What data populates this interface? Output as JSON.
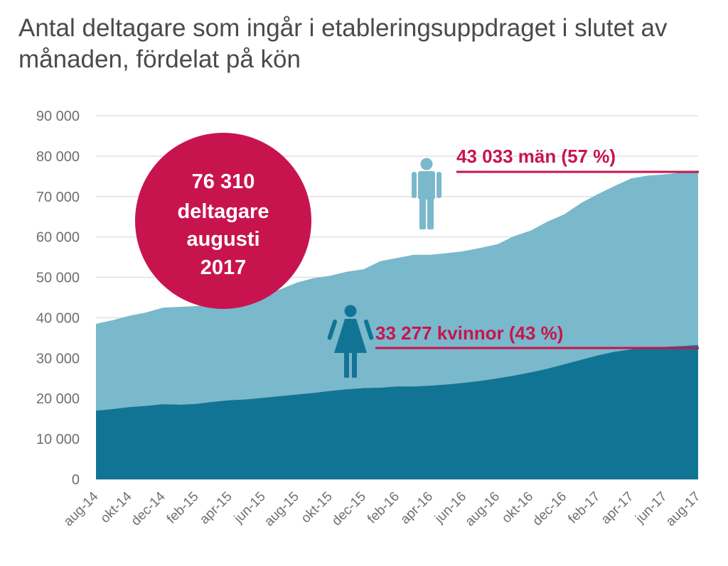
{
  "title": "Antal deltagare som ingår i etableringsuppdraget i slutet av månaden, fördelat på kön",
  "colors": {
    "men_area": "#7ab8cc",
    "women_area": "#127495",
    "accent": "#c8144e",
    "grid": "#e0e0e0"
  },
  "annotations": {
    "men_label": "43 033 män (57 %)",
    "women_label": "33 277 kvinnor (43 %)",
    "circle_line1": "76 310",
    "circle_line2": "deltagare",
    "circle_line3": "augusti",
    "circle_line4": "2017"
  },
  "icons": {
    "men": "man-icon",
    "women": "woman-icon"
  },
  "chart_data": {
    "type": "area",
    "stacked": true,
    "title": "Antal deltagare som ingår i etableringsuppdraget i slutet av månaden, fördelat på kön",
    "xlabel": "",
    "ylabel": "",
    "ylim": [
      0,
      90000
    ],
    "yticks": [
      0,
      10000,
      20000,
      30000,
      40000,
      50000,
      60000,
      70000,
      80000,
      90000
    ],
    "ytick_labels": [
      "0",
      "10 000",
      "20 000",
      "30 000",
      "40 000",
      "50 000",
      "60 000",
      "70 000",
      "80 000",
      "90 000"
    ],
    "grid": true,
    "x": [
      "aug-14",
      "sep-14",
      "okt-14",
      "nov-14",
      "dec-14",
      "jan-15",
      "feb-15",
      "mar-15",
      "apr-15",
      "maj-15",
      "jun-15",
      "jul-15",
      "aug-15",
      "sep-15",
      "okt-15",
      "nov-15",
      "dec-15",
      "jan-16",
      "feb-16",
      "mar-16",
      "apr-16",
      "maj-16",
      "jun-16",
      "jul-16",
      "aug-16",
      "sep-16",
      "okt-16",
      "nov-16",
      "dec-16",
      "jan-17",
      "feb-17",
      "mar-17",
      "apr-17",
      "maj-17",
      "jun-17",
      "jul-17",
      "aug-17"
    ],
    "x_tick_labels": [
      "aug-14",
      "okt-14",
      "dec-14",
      "feb-15",
      "apr-15",
      "jun-15",
      "aug-15",
      "okt-15",
      "dec-15",
      "feb-16",
      "apr-16",
      "jun-16",
      "aug-16",
      "okt-16",
      "dec-16",
      "feb-17",
      "apr-17",
      "jun-17",
      "aug-17"
    ],
    "series": [
      {
        "name": "kvinnor",
        "values": [
          17000,
          17400,
          17900,
          18200,
          18600,
          18500,
          18700,
          19200,
          19600,
          19800,
          20200,
          20600,
          21000,
          21400,
          21900,
          22300,
          22600,
          22700,
          23000,
          23000,
          23200,
          23500,
          23900,
          24400,
          25000,
          25700,
          26500,
          27400,
          28500,
          29600,
          30700,
          31600,
          32200,
          32500,
          32800,
          33000,
          33277
        ]
      },
      {
        "name": "män",
        "values": [
          21500,
          22000,
          22600,
          23100,
          23900,
          24200,
          24200,
          24200,
          24500,
          25100,
          25700,
          26400,
          27700,
          28400,
          28500,
          29100,
          29400,
          31300,
          31800,
          32600,
          32400,
          32500,
          32600,
          32900,
          33200,
          34500,
          35100,
          36400,
          37100,
          38800,
          39900,
          41000,
          42300,
          42700,
          42700,
          42950,
          43033
        ]
      }
    ]
  }
}
